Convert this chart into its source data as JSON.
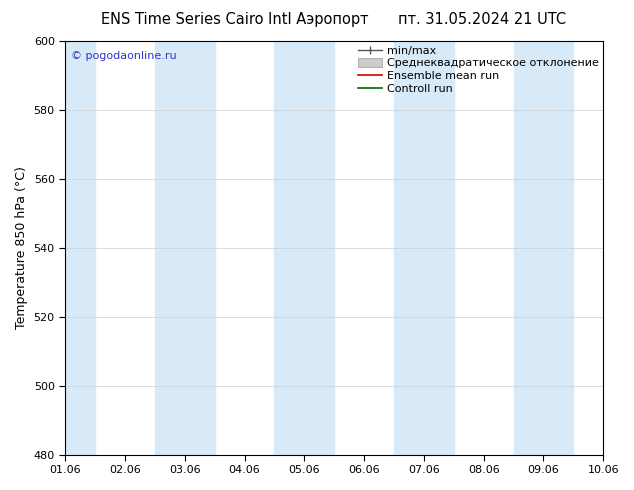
{
  "title_left": "ENS Time Series Cairo Intl Аэропорт",
  "title_right": "пт. 31.05.2024 21 UTC",
  "ylabel": "Temperature 850 hPa (°C)",
  "ylim": [
    480,
    600
  ],
  "yticks": [
    480,
    500,
    520,
    540,
    560,
    580,
    600
  ],
  "xlim": [
    0,
    9
  ],
  "xtick_labels": [
    "01.06",
    "02.06",
    "03.06",
    "04.06",
    "05.06",
    "06.06",
    "07.06",
    "08.06",
    "09.06",
    "10.06"
  ],
  "copyright": "© pogodaonline.ru",
  "legend_labels": [
    "min/max",
    "Среднеквадратическое отклонение",
    "Ensemble mean run",
    "Controll run"
  ],
  "background_color": "#ffffff",
  "plot_bg_color": "#ffffff",
  "band_color": "#d8eaf8",
  "shaded_bands": [
    {
      "x_start": 0,
      "x_end": 0.5
    },
    {
      "x_start": 1.5,
      "x_end": 2.5
    },
    {
      "x_start": 3.5,
      "x_end": 4.5
    },
    {
      "x_start": 5.5,
      "x_end": 6.5
    },
    {
      "x_start": 7.5,
      "x_end": 8.5
    }
  ],
  "title_fontsize": 10.5,
  "ylabel_fontsize": 9,
  "tick_fontsize": 8,
  "legend_fontsize": 8
}
